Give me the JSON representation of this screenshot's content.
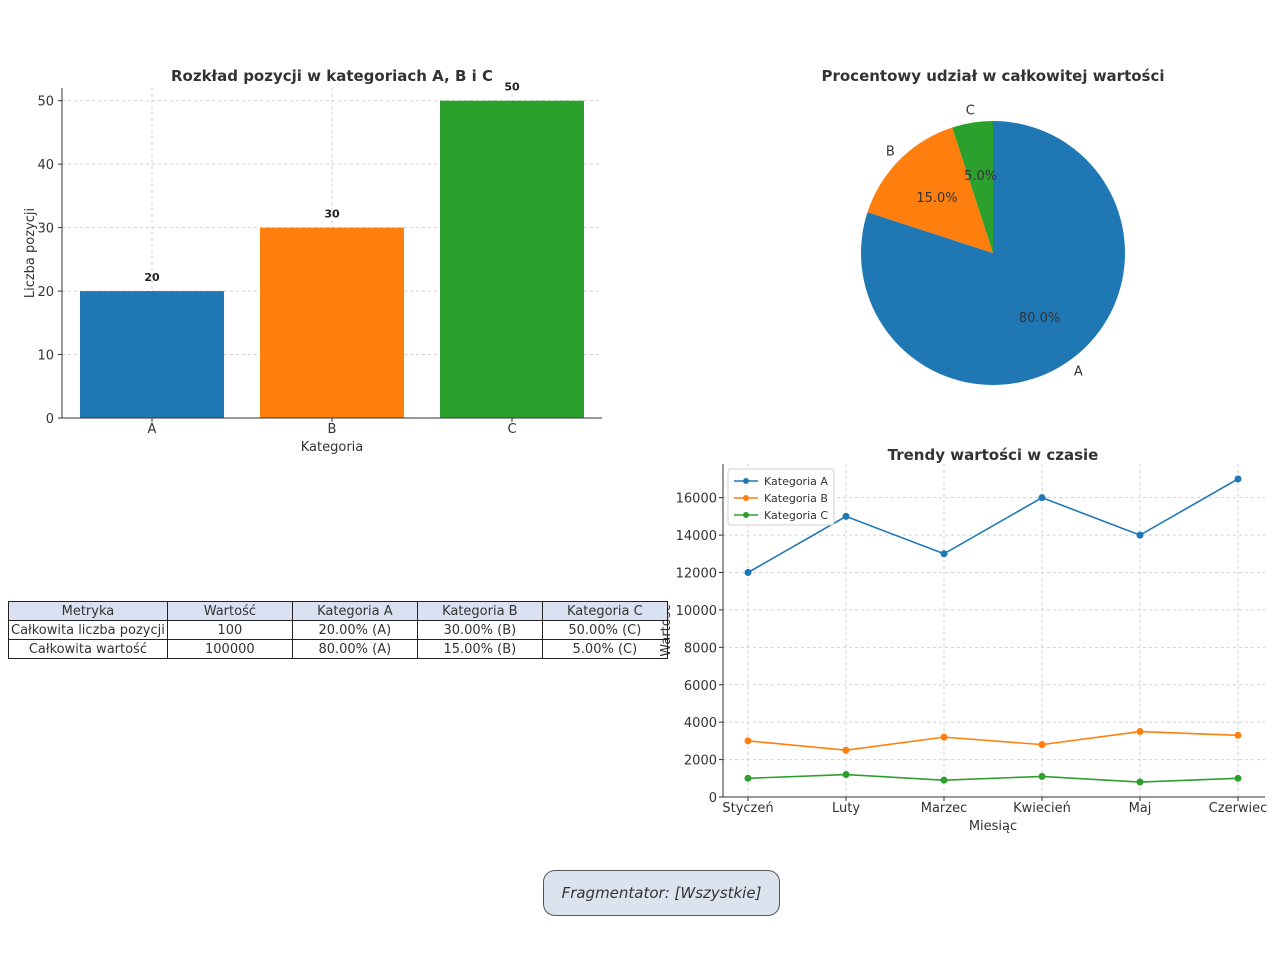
{
  "colors": {
    "A": "#1f77b4",
    "B": "#ff7f0e",
    "C": "#2ca02c"
  },
  "chart_data": [
    {
      "type": "bar",
      "title": "Rozkład pozycji w kategoriach A, B i C",
      "xlabel": "Kategoria",
      "ylabel": "Liczba pozycji",
      "categories": [
        "A",
        "B",
        "C"
      ],
      "values": [
        20,
        30,
        50
      ],
      "value_labels": [
        "20",
        "30",
        "50"
      ],
      "ylim": [
        0,
        52
      ],
      "yticks": [
        0,
        10,
        20,
        30,
        40,
        50
      ],
      "grid": true
    },
    {
      "type": "pie",
      "title": "Procentowy udział w całkowitej wartości",
      "labels": [
        "A",
        "B",
        "C"
      ],
      "values": [
        80.0,
        15.0,
        5.0
      ],
      "pct_labels": [
        "80.0%",
        "15.0%",
        "5.0%"
      ]
    },
    {
      "type": "line",
      "title": "Trendy wartości w czasie",
      "xlabel": "Miesiąc",
      "ylabel": "Wartość",
      "x": [
        "Styczeń",
        "Luty",
        "Marzec",
        "Kwiecień",
        "Maj",
        "Czerwiec"
      ],
      "series": [
        {
          "name": "Kategoria A",
          "values": [
            12000,
            15000,
            13000,
            16000,
            14000,
            17000
          ]
        },
        {
          "name": "Kategoria B",
          "values": [
            3000,
            2500,
            3200,
            2800,
            3500,
            3300
          ]
        },
        {
          "name": "Kategoria C",
          "values": [
            1000,
            1200,
            900,
            1100,
            800,
            1000
          ]
        }
      ],
      "ylim": [
        0,
        17800
      ],
      "yticks": [
        0,
        2000,
        4000,
        6000,
        8000,
        10000,
        12000,
        14000,
        16000
      ],
      "legend": "top-left",
      "grid": true
    }
  ],
  "table": {
    "headers": [
      "Metryka",
      "Wartość",
      "Kategoria A",
      "Kategoria B",
      "Kategoria C"
    ],
    "rows": [
      [
        "Całkowita liczba pozycji",
        "100",
        "20.00% (A)",
        "30.00% (B)",
        "50.00% (C)"
      ],
      [
        "Całkowita wartość",
        "100000",
        "80.00% (A)",
        "15.00% (B)",
        "5.00% (C)"
      ]
    ]
  },
  "slicer": {
    "label": "Fragmentator: [Wszystkie]"
  }
}
